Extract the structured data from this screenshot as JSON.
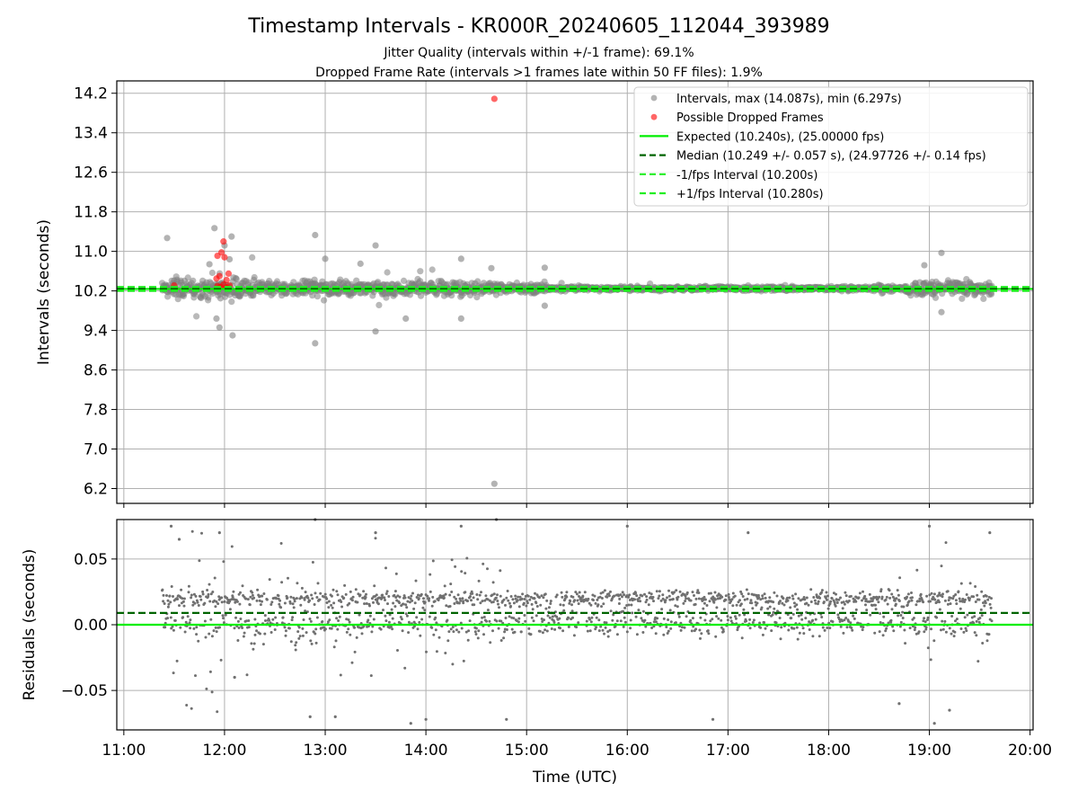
{
  "figure": {
    "title": "Timestamp Intervals - KR000R_20240605_112044_393989",
    "subtitle_1": "Jitter Quality (intervals within +/-1 frame): 69.1%",
    "subtitle_2": "Dropped Frame Rate (intervals >1 frames late within 50 FF files): 1.9%"
  },
  "chart_data": [
    {
      "type": "scatter",
      "panel": "top",
      "ylabel": "Intervals (seconds)",
      "xlabel": "",
      "ylim": [
        5.9,
        14.45
      ],
      "yticks": [
        "6.2",
        "7.0",
        "7.8",
        "8.6",
        "9.4",
        "10.2",
        "11.0",
        "11.8",
        "12.6",
        "13.4",
        "14.2"
      ],
      "ytick_values": [
        6.2,
        7.0,
        7.8,
        8.6,
        9.4,
        10.2,
        11.0,
        11.8,
        12.6,
        13.4,
        14.2
      ],
      "xlim_hours": [
        10.93,
        20.03
      ],
      "xtick_hours": [
        11,
        12,
        13,
        14,
        15,
        16,
        17,
        18,
        19,
        20
      ],
      "grid": true,
      "legend_position": "top-right",
      "series": [
        {
          "name": "Intervals, max (14.087s), min (6.297s)",
          "kind": "scatter",
          "color": "#808080",
          "highlighted_points": [
            {
              "x": 11.43,
              "y": 11.27
            },
            {
              "x": 11.5,
              "y": 10.41
            },
            {
              "x": 11.85,
              "y": 10.74
            },
            {
              "x": 11.9,
              "y": 11.47
            },
            {
              "x": 11.92,
              "y": 9.64
            },
            {
              "x": 11.96,
              "y": 10.05
            },
            {
              "x": 12.0,
              "y": 11.12
            },
            {
              "x": 12.05,
              "y": 10.84
            },
            {
              "x": 12.07,
              "y": 11.3
            },
            {
              "x": 12.08,
              "y": 9.3
            },
            {
              "x": 11.95,
              "y": 9.46
            },
            {
              "x": 12.9,
              "y": 11.33
            },
            {
              "x": 12.9,
              "y": 9.14
            },
            {
              "x": 13.0,
              "y": 10.85
            },
            {
              "x": 13.5,
              "y": 11.12
            },
            {
              "x": 13.5,
              "y": 9.38
            },
            {
              "x": 13.35,
              "y": 10.75
            },
            {
              "x": 13.8,
              "y": 9.64
            },
            {
              "x": 14.35,
              "y": 10.85
            },
            {
              "x": 14.35,
              "y": 9.64
            },
            {
              "x": 14.65,
              "y": 10.66
            },
            {
              "x": 14.68,
              "y": 6.297
            },
            {
              "x": 15.18,
              "y": 9.9
            },
            {
              "x": 15.18,
              "y": 10.67
            },
            {
              "x": 19.12,
              "y": 10.97
            },
            {
              "x": 19.12,
              "y": 9.77
            },
            {
              "x": 18.95,
              "y": 10.72
            }
          ]
        },
        {
          "name": "Possible Dropped Frames",
          "kind": "scatter",
          "color": "#ff0000",
          "highlighted_points": [
            {
              "x": 11.5,
              "y": 10.31
            },
            {
              "x": 11.93,
              "y": 10.91
            },
            {
              "x": 11.97,
              "y": 10.98
            },
            {
              "x": 11.99,
              "y": 11.2
            },
            {
              "x": 12.0,
              "y": 10.88
            },
            {
              "x": 11.92,
              "y": 10.45
            },
            {
              "x": 11.95,
              "y": 10.5
            },
            {
              "x": 12.02,
              "y": 10.42
            },
            {
              "x": 12.04,
              "y": 10.55
            },
            {
              "x": 11.93,
              "y": 10.3
            },
            {
              "x": 11.96,
              "y": 10.28
            },
            {
              "x": 11.99,
              "y": 10.33
            },
            {
              "x": 12.02,
              "y": 10.27
            },
            {
              "x": 12.05,
              "y": 10.31
            },
            {
              "x": 14.68,
              "y": 14.087
            }
          ]
        },
        {
          "name": "Expected (10.240s), (25.00000 fps)",
          "kind": "hline",
          "y": 10.24,
          "color": "#00ee00",
          "style": "solid"
        },
        {
          "name": "Median (10.249 +/- 0.057 s), (24.97726 +/- 0.14 fps)",
          "kind": "hline",
          "y": 10.249,
          "color": "#006400",
          "style": "dashed"
        },
        {
          "name": "-1/fps Interval (10.200s)",
          "kind": "hline",
          "y": 10.2,
          "color": "#22ee22",
          "style": "dashed"
        },
        {
          "name": "+1/fps Interval (10.280s)",
          "kind": "hline",
          "y": 10.28,
          "color": "#22ee22",
          "style": "dashed"
        }
      ]
    },
    {
      "type": "scatter",
      "panel": "bottom",
      "ylabel": "Residuals (seconds)",
      "xlabel": "Time (UTC)",
      "ylim": [
        -0.08,
        0.08
      ],
      "yticks": [
        "−0.05",
        "0.00",
        "0.05"
      ],
      "ytick_values": [
        -0.05,
        0.0,
        0.05
      ],
      "xlim_hours": [
        10.93,
        20.03
      ],
      "xticks": [
        "11:00",
        "12:00",
        "13:00",
        "14:00",
        "15:00",
        "16:00",
        "17:00",
        "18:00",
        "19:00",
        "20:00"
      ],
      "xtick_hours": [
        11,
        12,
        13,
        14,
        15,
        16,
        17,
        18,
        19,
        20
      ],
      "grid": true,
      "series": [
        {
          "name": "Residuals",
          "kind": "scatter",
          "color": "#707070",
          "highlighted_points": [
            {
              "x": 11.47,
              "y": 0.075
            },
            {
              "x": 11.55,
              "y": 0.065
            },
            {
              "x": 11.95,
              "y": 0.07
            },
            {
              "x": 12.1,
              "y": -0.04
            },
            {
              "x": 12.9,
              "y": 0.08
            },
            {
              "x": 12.85,
              "y": -0.07
            },
            {
              "x": 13.1,
              "y": -0.07
            },
            {
              "x": 13.5,
              "y": 0.07
            },
            {
              "x": 13.85,
              "y": -0.075
            },
            {
              "x": 14.0,
              "y": -0.072
            },
            {
              "x": 14.35,
              "y": 0.075
            },
            {
              "x": 14.7,
              "y": 0.08
            },
            {
              "x": 14.8,
              "y": -0.072
            },
            {
              "x": 16.0,
              "y": 0.075
            },
            {
              "x": 16.85,
              "y": -0.072
            },
            {
              "x": 17.2,
              "y": 0.07
            },
            {
              "x": 18.7,
              "y": -0.06
            },
            {
              "x": 19.0,
              "y": 0.075
            },
            {
              "x": 19.05,
              "y": -0.075
            },
            {
              "x": 19.2,
              "y": -0.065
            },
            {
              "x": 19.6,
              "y": 0.07
            }
          ]
        },
        {
          "name": "Median",
          "kind": "hline",
          "y": 0.009,
          "color": "#006400",
          "style": "dashed"
        },
        {
          "name": "Expected",
          "kind": "hline",
          "y": 0.0,
          "color": "#00ee00",
          "style": "solid"
        }
      ]
    }
  ]
}
